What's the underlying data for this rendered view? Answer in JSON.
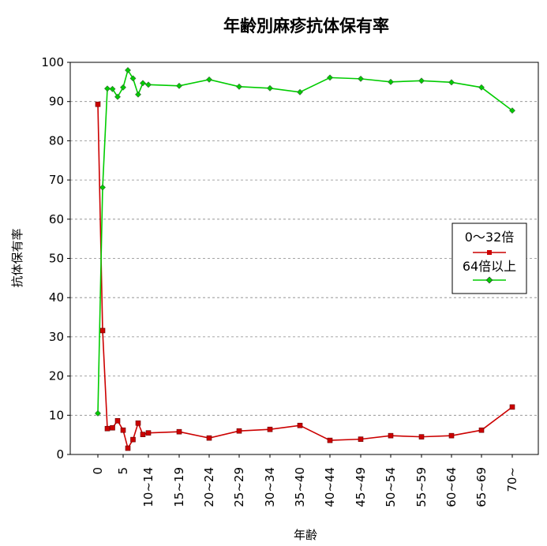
{
  "chart_data": {
    "type": "line",
    "title": "年齢別麻疹抗体保有率",
    "xlabel": "年齢",
    "ylabel": "抗体保有率",
    "ylim": [
      0,
      100
    ],
    "yticks": [
      0,
      10,
      20,
      30,
      40,
      50,
      60,
      70,
      80,
      90,
      100
    ],
    "grid": true,
    "legend_position": "right",
    "x_tick_labels": [
      "0",
      "5",
      "10~14",
      "15~19",
      "20~24",
      "25~29",
      "30~34",
      "35~40",
      "40~44",
      "45~49",
      "50~54",
      "55~59",
      "60~64",
      "65~69",
      "70~"
    ],
    "categories": [
      "0",
      "1",
      "2",
      "3",
      "4",
      "5",
      "6",
      "7",
      "8",
      "9",
      "10~14",
      "15~19",
      "20~24",
      "25~29",
      "30~34",
      "35~40",
      "40~44",
      "45~49",
      "50~54",
      "55~59",
      "60~64",
      "65~69",
      "70~"
    ],
    "series": [
      {
        "name": "0～32倍",
        "color": "#cc0000",
        "marker": "square",
        "values": [
          89.3,
          31.6,
          6.6,
          6.8,
          8.6,
          6.2,
          1.6,
          3.8,
          8.0,
          5.1,
          5.5,
          5.8,
          4.2,
          6.0,
          6.4,
          7.4,
          3.6,
          3.9,
          4.8,
          4.5,
          4.8,
          6.2,
          12.1
        ]
      },
      {
        "name": "64倍以上",
        "color": "#00cc00",
        "marker": "diamond",
        "values": [
          10.5,
          68.1,
          93.3,
          93.2,
          91.2,
          93.6,
          98.0,
          95.9,
          91.8,
          94.7,
          94.3,
          94.0,
          95.6,
          93.8,
          93.4,
          92.4,
          96.1,
          95.8,
          95.0,
          95.3,
          94.9,
          93.6,
          87.7
        ]
      }
    ]
  }
}
